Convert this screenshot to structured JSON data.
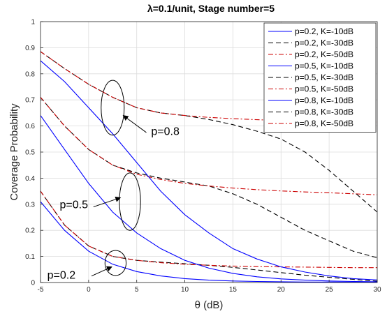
{
  "chart_data": {
    "type": "line",
    "title": "λ=0.1/unit, Stage number=5",
    "xlabel": "θ (dB)",
    "ylabel": "Coverage Probability",
    "xlim": [
      -5,
      30
    ],
    "ylim": [
      0,
      1
    ],
    "xticks": [
      "-5",
      "0",
      "5",
      "10",
      "15",
      "20",
      "25",
      "30"
    ],
    "yticks": [
      "0",
      "0.1",
      "0.2",
      "0.3",
      "0.4",
      "0.5",
      "0.6",
      "0.7",
      "0.8",
      "0.9",
      "1"
    ],
    "grid": true,
    "legend_position": "top-right",
    "x": [
      -5,
      -2.5,
      0,
      2.5,
      5,
      7.5,
      10,
      12.5,
      15,
      17.5,
      20,
      22.5,
      25,
      27.5,
      30
    ],
    "series": [
      {
        "name": "p=0.2, K=-10dB",
        "color": "#0000FF",
        "dash": "solid",
        "values": [
          0.31,
          0.2,
          0.12,
          0.07,
          0.042,
          0.025,
          0.015,
          0.009,
          0.006,
          0.004,
          0.003,
          0.002,
          0.002,
          0.0015,
          0.001
        ]
      },
      {
        "name": "p=0.2, K=-30dB",
        "color": "#000000",
        "dash": "dashed",
        "values": [
          0.35,
          0.22,
          0.14,
          0.1,
          0.085,
          0.078,
          0.072,
          0.066,
          0.058,
          0.048,
          0.038,
          0.028,
          0.02,
          0.012,
          0.005
        ]
      },
      {
        "name": "p=0.2, K=-50dB",
        "color": "#CC0000",
        "dash": "dashdot",
        "values": [
          0.35,
          0.22,
          0.14,
          0.1,
          0.085,
          0.076,
          0.07,
          0.066,
          0.063,
          0.061,
          0.06,
          0.059,
          0.058,
          0.057,
          0.057
        ]
      },
      {
        "name": "p=0.5, K=-10dB",
        "color": "#0000FF",
        "dash": "solid",
        "values": [
          0.64,
          0.51,
          0.38,
          0.27,
          0.19,
          0.13,
          0.085,
          0.055,
          0.035,
          0.022,
          0.014,
          0.009,
          0.006,
          0.004,
          0.003
        ]
      },
      {
        "name": "p=0.5, K=-30dB",
        "color": "#000000",
        "dash": "dashed",
        "values": [
          0.71,
          0.6,
          0.51,
          0.45,
          0.42,
          0.4,
          0.385,
          0.37,
          0.34,
          0.3,
          0.25,
          0.2,
          0.16,
          0.12,
          0.095
        ]
      },
      {
        "name": "p=0.5, K=-50dB",
        "color": "#CC0000",
        "dash": "dashdot",
        "values": [
          0.71,
          0.6,
          0.51,
          0.45,
          0.415,
          0.395,
          0.38,
          0.37,
          0.362,
          0.356,
          0.351,
          0.347,
          0.344,
          0.34,
          0.336
        ]
      },
      {
        "name": "p=0.8, K=-10dB",
        "color": "#0000FF",
        "dash": "solid",
        "values": [
          0.85,
          0.77,
          0.67,
          0.57,
          0.46,
          0.35,
          0.26,
          0.19,
          0.13,
          0.09,
          0.06,
          0.04,
          0.025,
          0.015,
          0.01
        ]
      },
      {
        "name": "p=0.8, K=-30dB",
        "color": "#000000",
        "dash": "dashed",
        "values": [
          0.885,
          0.82,
          0.76,
          0.71,
          0.67,
          0.65,
          0.64,
          0.625,
          0.605,
          0.58,
          0.55,
          0.5,
          0.43,
          0.35,
          0.27
        ]
      },
      {
        "name": "p=0.8, K=-50dB",
        "color": "#CC0000",
        "dash": "dashdot",
        "values": [
          0.885,
          0.82,
          0.76,
          0.71,
          0.67,
          0.65,
          0.64,
          0.633,
          0.628,
          0.624,
          0.621,
          0.619,
          0.617,
          0.616,
          0.615
        ]
      }
    ],
    "annotations": [
      {
        "text": "p=0.8",
        "ellipse_center": [
          2.5,
          0.67
        ],
        "ellipse_rx": 1.2,
        "ellipse_ry": 0.105,
        "arrow_from": [
          6.0,
          0.575
        ],
        "arrow_to": [
          3.6,
          0.64
        ],
        "label_at": [
          6.5,
          0.565
        ]
      },
      {
        "text": "p=0.5",
        "ellipse_center": [
          4.3,
          0.31
        ],
        "ellipse_rx": 1.1,
        "ellipse_ry": 0.11,
        "arrow_from": [
          0.5,
          0.29
        ],
        "arrow_to": [
          3.3,
          0.325
        ],
        "label_at": [
          -3.0,
          0.285
        ]
      },
      {
        "text": "p=0.2",
        "ellipse_center": [
          2.8,
          0.075
        ],
        "ellipse_rx": 1.1,
        "ellipse_ry": 0.048,
        "arrow_from": [
          0.3,
          0.025
        ],
        "arrow_to": [
          2.4,
          0.06
        ],
        "label_at": [
          -4.3,
          0.015
        ]
      }
    ]
  }
}
